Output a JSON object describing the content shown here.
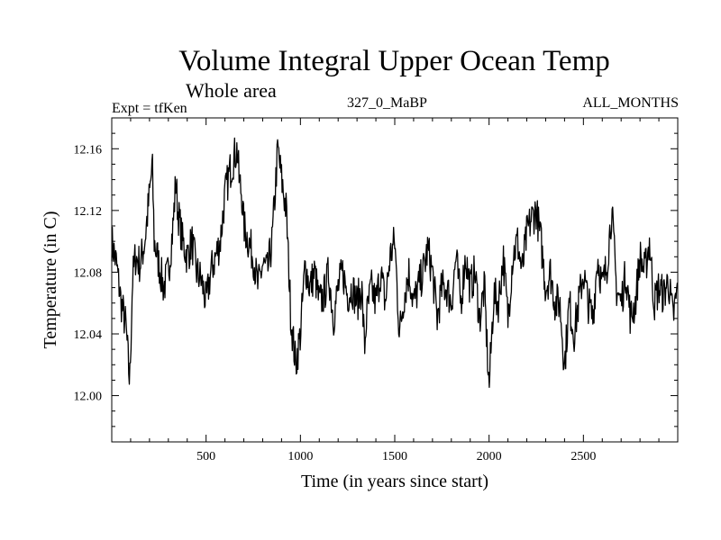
{
  "chart_data": {
    "type": "line",
    "title": "Volume Integral Upper Ocean Temp",
    "subtitle": "Whole area",
    "annotations": {
      "left": "Expt = tfKen",
      "center": "327_0_MaBP",
      "right": "ALL_MONTHS"
    },
    "xlabel": "Time (in years since start)",
    "ylabel": "Temperature (in C)",
    "xlim": [
      0,
      3000
    ],
    "ylim": [
      11.97,
      12.18
    ],
    "xticks": [
      500,
      1000,
      1500,
      2000,
      2500
    ],
    "xtick_labels": [
      "500",
      "1000",
      "1500",
      "2000",
      "2500"
    ],
    "yticks": [
      12.0,
      12.04,
      12.08,
      12.12,
      12.16
    ],
    "ytick_labels": [
      "12.00",
      "12.04",
      "12.08",
      "12.12",
      "12.16"
    ],
    "grid": false,
    "legend": "none",
    "line_color": "#000000",
    "series": [
      {
        "x": [
          0,
          25,
          50,
          75,
          95,
          100,
          110,
          125,
          150,
          175,
          200,
          215,
          225,
          250,
          275,
          300,
          325,
          340,
          350,
          375,
          400,
          425,
          450,
          475,
          500,
          525,
          550,
          575,
          600,
          625,
          650,
          665,
          675,
          690,
          700,
          725,
          750,
          775,
          800,
          825,
          850,
          880,
          900,
          925,
          950,
          975,
          1000,
          1025,
          1050,
          1075,
          1100,
          1125,
          1150,
          1175,
          1200,
          1225,
          1250,
          1275,
          1300,
          1325,
          1340,
          1350,
          1375,
          1400,
          1425,
          1450,
          1475,
          1500,
          1525,
          1550,
          1575,
          1600,
          1625,
          1650,
          1675,
          1700,
          1725,
          1750,
          1775,
          1800,
          1825,
          1850,
          1875,
          1900,
          1925,
          1950,
          1975,
          1990,
          2000,
          2025,
          2050,
          2075,
          2100,
          2125,
          2150,
          2175,
          2200,
          2225,
          2250,
          2275,
          2300,
          2325,
          2350,
          2375,
          2400,
          2425,
          2450,
          2475,
          2500,
          2525,
          2550,
          2575,
          2600,
          2625,
          2650,
          2675,
          2700,
          2725,
          2750,
          2775,
          2800,
          2825,
          2850,
          2875,
          2900,
          2925,
          2950,
          2975,
          3000
        ],
        "y": [
          12.1,
          12.085,
          12.06,
          12.045,
          12.008,
          12.03,
          12.075,
          12.09,
          12.085,
          12.1,
          12.13,
          12.15,
          12.1,
          12.085,
          12.07,
          12.08,
          12.11,
          12.14,
          12.12,
          12.1,
          12.09,
          12.1,
          12.08,
          12.075,
          12.06,
          12.08,
          12.09,
          12.1,
          12.13,
          12.145,
          12.155,
          12.16,
          12.14,
          12.13,
          12.11,
          12.1,
          12.09,
          12.07,
          12.085,
          12.08,
          12.1,
          12.16,
          12.14,
          12.12,
          12.05,
          12.02,
          12.04,
          12.085,
          12.07,
          12.08,
          12.06,
          12.065,
          12.08,
          12.05,
          12.07,
          12.08,
          12.065,
          12.07,
          12.06,
          12.07,
          12.03,
          12.05,
          12.07,
          12.06,
          12.08,
          12.06,
          12.09,
          12.1,
          12.04,
          12.065,
          12.08,
          12.06,
          12.07,
          12.08,
          12.095,
          12.08,
          12.05,
          12.07,
          12.07,
          12.06,
          12.09,
          12.06,
          12.09,
          12.07,
          12.08,
          12.05,
          12.07,
          12.03,
          12.005,
          12.065,
          12.06,
          12.09,
          12.05,
          12.09,
          12.1,
          12.08,
          12.105,
          12.115,
          12.12,
          12.1,
          12.07,
          12.08,
          12.06,
          12.06,
          12.02,
          12.06,
          12.04,
          12.06,
          12.08,
          12.06,
          12.05,
          12.09,
          12.07,
          12.085,
          12.12,
          12.07,
          12.06,
          12.08,
          12.05,
          12.06,
          12.09,
          12.08,
          12.1,
          12.06,
          12.07,
          12.065,
          12.075,
          12.05,
          12.07
        ]
      }
    ]
  }
}
